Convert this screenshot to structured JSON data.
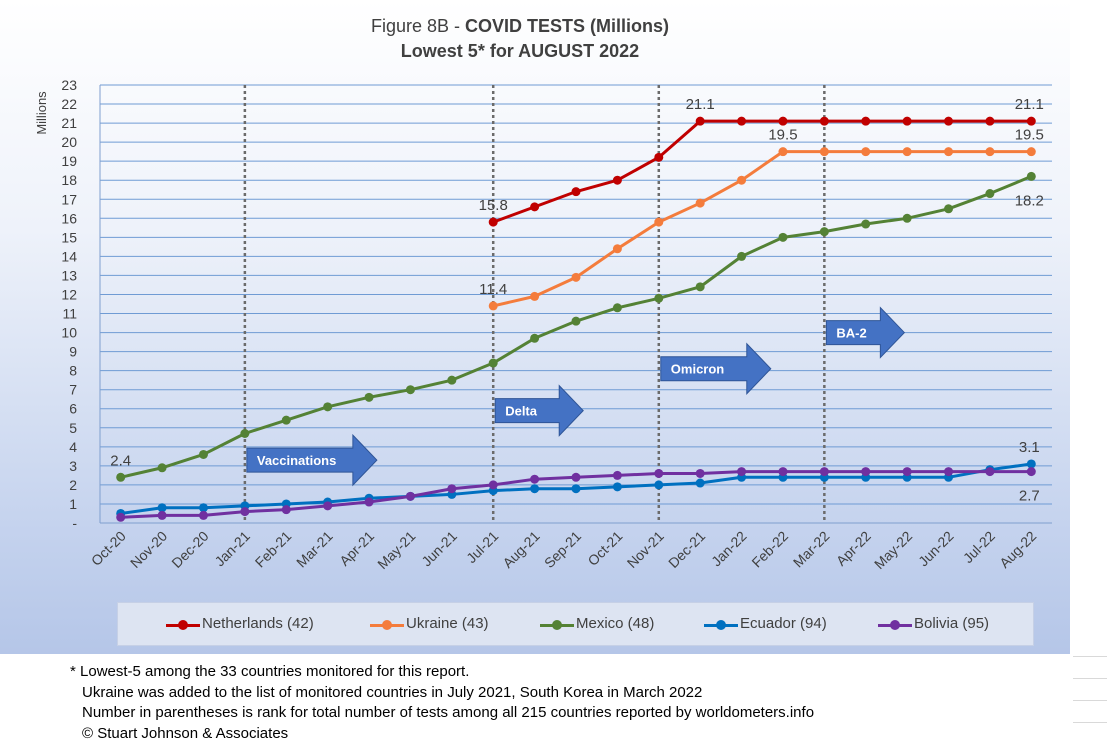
{
  "title": {
    "line1_prefix": "Figure 8B - ",
    "line1_bold": "COVID TESTS (Millions)",
    "line2": "Lowest 5* for AUGUST 2022"
  },
  "chart_data": {
    "type": "line",
    "ylabel": "Millions",
    "xlabel": "",
    "ylim": [
      0,
      23
    ],
    "y_ticks": [
      "-",
      "1",
      "2",
      "3",
      "4",
      "5",
      "6",
      "7",
      "8",
      "9",
      "10",
      "11",
      "12",
      "13",
      "14",
      "15",
      "16",
      "17",
      "18",
      "19",
      "20",
      "21",
      "22",
      "23"
    ],
    "categories": [
      "Oct-20",
      "Nov-20",
      "Dec-20",
      "Jan-21",
      "Feb-21",
      "Mar-21",
      "Apr-21",
      "May-21",
      "Jun-21",
      "Jul-21",
      "Aug-21",
      "Sep-21",
      "Oct-21",
      "Nov-21",
      "Dec-21",
      "Jan-22",
      "Feb-22",
      "Mar-22",
      "Apr-22",
      "May-22",
      "Jun-22",
      "Jul-22",
      "Aug-22"
    ],
    "grid": true,
    "legend_position": "bottom",
    "series": [
      {
        "name": "Netherlands (42)",
        "color": "#c00000",
        "values": [
          null,
          null,
          null,
          null,
          null,
          null,
          null,
          null,
          null,
          15.8,
          16.6,
          17.4,
          18.0,
          19.2,
          21.1,
          21.1,
          21.1,
          21.1,
          21.1,
          21.1,
          21.1,
          21.1,
          21.1
        ]
      },
      {
        "name": "Ukraine (43)",
        "color": "#f47c3c",
        "values": [
          null,
          null,
          null,
          null,
          null,
          null,
          null,
          null,
          null,
          11.4,
          11.9,
          12.9,
          14.4,
          15.8,
          16.8,
          18.0,
          19.5,
          19.5,
          19.5,
          19.5,
          19.5,
          19.5,
          19.5
        ]
      },
      {
        "name": "Mexico (48)",
        "color": "#548235",
        "values": [
          2.4,
          2.9,
          3.6,
          4.7,
          5.4,
          6.1,
          6.6,
          7.0,
          7.5,
          8.4,
          9.7,
          10.6,
          11.3,
          11.8,
          12.4,
          14.0,
          15.0,
          15.3,
          15.7,
          16.0,
          16.5,
          17.3,
          18.2
        ]
      },
      {
        "name": "Ecuador (94)",
        "color": "#0070c0",
        "values": [
          0.5,
          0.8,
          0.8,
          0.9,
          1.0,
          1.1,
          1.3,
          1.4,
          1.5,
          1.7,
          1.8,
          1.8,
          1.9,
          2.0,
          2.1,
          2.4,
          2.4,
          2.4,
          2.4,
          2.4,
          2.4,
          2.8,
          3.1
        ]
      },
      {
        "name": "Bolivia  (95)",
        "color": "#7030a0",
        "values": [
          0.3,
          0.4,
          0.4,
          0.6,
          0.7,
          0.9,
          1.1,
          1.4,
          1.8,
          2.0,
          2.3,
          2.4,
          2.5,
          2.6,
          2.6,
          2.7,
          2.7,
          2.7,
          2.7,
          2.7,
          2.7,
          2.7,
          2.7
        ]
      }
    ],
    "data_labels": [
      {
        "series": "Mexico (48)",
        "category": "Oct-20",
        "text": "2.4",
        "placement": "above"
      },
      {
        "series": "Netherlands (42)",
        "category": "Jul-21",
        "text": "15.8",
        "placement": "above"
      },
      {
        "series": "Ukraine (43)",
        "category": "Jul-21",
        "text": "11.4",
        "placement": "above"
      },
      {
        "series": "Netherlands (42)",
        "category": "Dec-21",
        "text": "21.1",
        "placement": "above"
      },
      {
        "series": "Ukraine (43)",
        "category": "Feb-22",
        "text": "19.5",
        "placement": "above"
      },
      {
        "series": "Netherlands (42)",
        "category": "Aug-22",
        "text": "21.1",
        "placement": "above"
      },
      {
        "series": "Ukraine (43)",
        "category": "Aug-22",
        "text": "19.5",
        "placement": "above"
      },
      {
        "series": "Mexico (48)",
        "category": "Aug-22",
        "text": "18.2",
        "placement": "below"
      },
      {
        "series": "Ecuador (94)",
        "category": "Aug-22",
        "text": "3.1",
        "placement": "above"
      },
      {
        "series": "Bolivia  (95)",
        "category": "Aug-22",
        "text": "2.7",
        "placement": "below"
      }
    ],
    "event_lines": [
      {
        "category": "Jan-21",
        "label": "Vaccinations",
        "y": 3.3
      },
      {
        "category": "Jul-21",
        "label": "Delta",
        "y": 5.9
      },
      {
        "category": "Nov-21",
        "label": "Omicron",
        "y": 8.1
      },
      {
        "category": "Mar-22",
        "label": "BA-2",
        "y": 10.0
      }
    ]
  },
  "footnotes": [
    "* Lowest-5 among the 33 countries monitored for this report.",
    "Ukraine was added to the list of monitored countries in July 2021, South Korea in March 2022",
    "Number in parentheses is rank for total number of tests among all 215 countries reported by worldometers.info",
    "© Stuart Johnson & Associates"
  ]
}
